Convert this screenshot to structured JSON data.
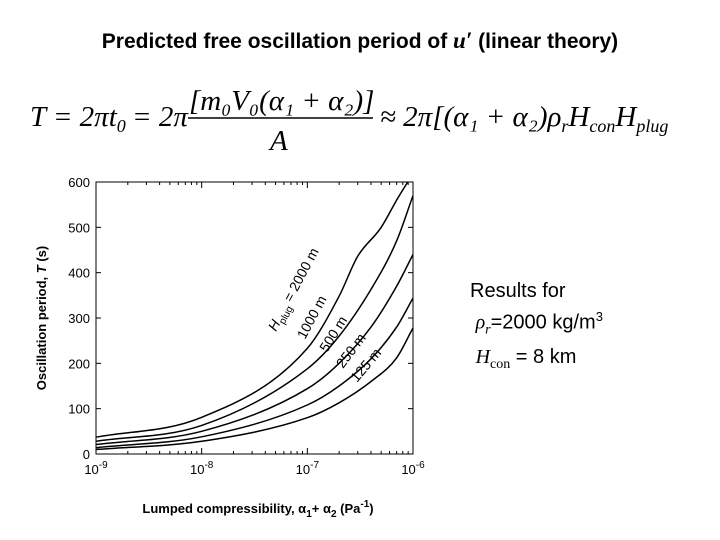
{
  "slide": {
    "title_prefix": "Predicted free oscillation period of ",
    "title_symbol": "u′",
    "title_suffix": " (linear theory)"
  },
  "equation": {
    "lhs": "T = 2πt",
    "lhs_sub": "0",
    "mid": " = 2π",
    "numerator": "[m₀V₀(α₁ + α₂)]",
    "denominator": "A",
    "rhs_a": "≈ 2π[(α₁ + α₂)ρ",
    "rhs_r": "r",
    "rhs_h": "H",
    "rhs_con": "con",
    "rhs_h2": "H",
    "rhs_plug": "plug"
  },
  "results": {
    "line1": "Results for",
    "rho_symbol": "ρ",
    "rho_sub": "r",
    "rho_value": "=2000 kg/m",
    "rho_exp": "3",
    "h_symbol": "H",
    "h_sub": "con",
    "h_value": " = 8 km"
  },
  "chart_data": {
    "type": "line",
    "xlabel_main": "Lumped compressibility, α",
    "xlabel_sub1": "1",
    "xlabel_mid": "+ α",
    "xlabel_sub2": "2",
    "xlabel_unit_open": " (Pa",
    "xlabel_unit_exp": "-1",
    "xlabel_unit_close": ")",
    "ylabel": "Oscillation period, ",
    "ylabel_italic": "T",
    "ylabel_unit": " (s)",
    "x_scale": "log",
    "xlim": [
      1e-09,
      1e-06
    ],
    "ylim": [
      0,
      600
    ],
    "x_ticks": [
      {
        "value": 1e-09,
        "mantissa": "10",
        "exp": "-9"
      },
      {
        "value": 1e-08,
        "mantissa": "10",
        "exp": "-8"
      },
      {
        "value": 1e-07,
        "mantissa": "10",
        "exp": "-7"
      },
      {
        "value": 1e-06,
        "mantissa": "10",
        "exp": "-6"
      }
    ],
    "y_ticks": [
      0,
      100,
      200,
      300,
      400,
      500,
      600
    ],
    "grid": false,
    "series": [
      {
        "label": "2000 m",
        "x": [
          1e-09,
          1e-08,
          1e-07,
          2e-07,
          3e-07,
          5e-07,
          7e-07,
          8.9e-07
        ],
        "y": [
          37,
          81,
          233,
          348,
          436,
          500,
          560,
          600
        ]
      },
      {
        "label": "1000 m",
        "x": [
          1e-09,
          1e-08,
          1e-07,
          2e-07,
          4e-07,
          7e-07,
          1e-06
        ],
        "y": [
          28,
          63,
          188,
          260,
          363,
          470,
          570
        ]
      },
      {
        "label": "500 m",
        "x": [
          1e-09,
          1e-08,
          1e-07,
          2e-07,
          4e-07,
          7e-07,
          1e-06
        ],
        "y": [
          21,
          50,
          144,
          200,
          280,
          370,
          440
        ]
      },
      {
        "label": "250 m",
        "x": [
          1e-09,
          1e-08,
          1e-07,
          2e-07,
          4e-07,
          7e-07,
          1e-06
        ],
        "y": [
          14,
          38,
          108,
          150,
          210,
          280,
          344
        ]
      },
      {
        "label": "125 m",
        "x": [
          1e-09,
          1e-08,
          1e-07,
          2e-07,
          4e-07,
          7e-07,
          1e-06
        ],
        "y": [
          10,
          28,
          80,
          113,
          160,
          212,
          278
        ]
      }
    ],
    "annotations": {
      "first_label_symbol": "H",
      "first_label_sub": "plug",
      "first_label_rest": " = 2000 m",
      "others": [
        "1000 m",
        "500 m",
        "250 m",
        "125 m"
      ]
    }
  }
}
